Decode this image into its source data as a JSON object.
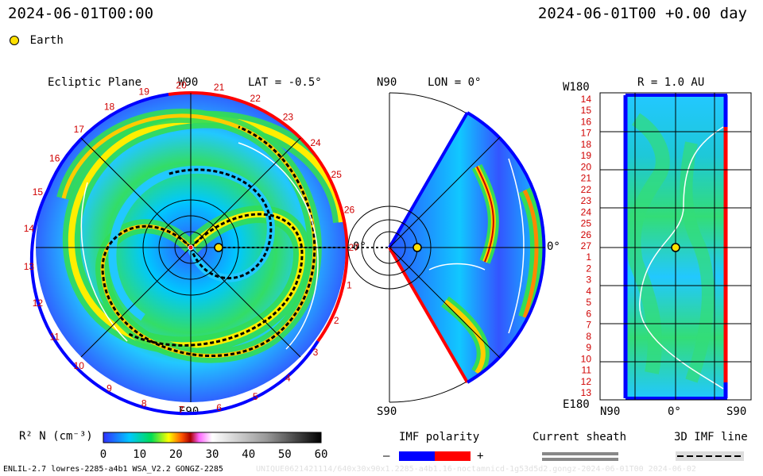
{
  "header": {
    "left_datetime": "2024-06-01T00:00",
    "right_datetime": "2024-06-01T00 +0.00 day",
    "legend_earth": "Earth"
  },
  "panels": {
    "ecliptic": {
      "title": "Ecliptic Plane",
      "lat_label": "LAT = -0.5°",
      "top_label": "W90",
      "bottom_label": "E90",
      "right_label": "0°",
      "carrington_ticks": [
        "1",
        "2",
        "3",
        "4",
        "5",
        "6",
        "7",
        "8",
        "9",
        "10",
        "11",
        "12",
        "13",
        "14",
        "15",
        "16",
        "17",
        "18",
        "19",
        "20",
        "21",
        "22",
        "23",
        "24",
        "25",
        "26",
        "27"
      ]
    },
    "meridional": {
      "lon_label": "LON = 0°",
      "top_label": "N90",
      "bottom_label": "S90",
      "right_label": "0°"
    },
    "radial": {
      "r_label": "R = 1.0 AU",
      "top_left_label": "W180",
      "bottom_left_label": "E180",
      "x_labels": [
        "N90",
        "0°",
        "S90"
      ],
      "y_ticks": [
        "14",
        "15",
        "16",
        "17",
        "18",
        "19",
        "20",
        "21",
        "22",
        "23",
        "24",
        "25",
        "26",
        "27",
        "1",
        "2",
        "3",
        "4",
        "5",
        "6",
        "7",
        "8",
        "9",
        "10",
        "11",
        "12",
        "13"
      ]
    }
  },
  "colorbar": {
    "label": "R² N (cm⁻³)",
    "ticks": [
      "0",
      "10",
      "20",
      "30",
      "40",
      "50",
      "60"
    ],
    "range": [
      0,
      60
    ]
  },
  "legends": {
    "imf_polarity": {
      "title": "IMF polarity",
      "minus": "–",
      "plus": "+",
      "neg_color": "#0000ff",
      "pos_color": "#ff0000"
    },
    "current_sheath": {
      "title": "Current sheath"
    },
    "imf_line": {
      "title": "3D IMF line"
    }
  },
  "footer": {
    "model_info": "ENLIL-2.7 lowres-2285-a4b1 WSA_V2.2 GONGZ-2285",
    "run_info": "UNIQUE0621421114/640x30x90x1.2285-a4b1.16-noctamnicd-1g53d5d2.gongz-2024-06-01T00    2024-06-02"
  },
  "colors": {
    "earth": "#ffe000",
    "pos": "#ff0000",
    "neg": "#0000ff"
  }
}
